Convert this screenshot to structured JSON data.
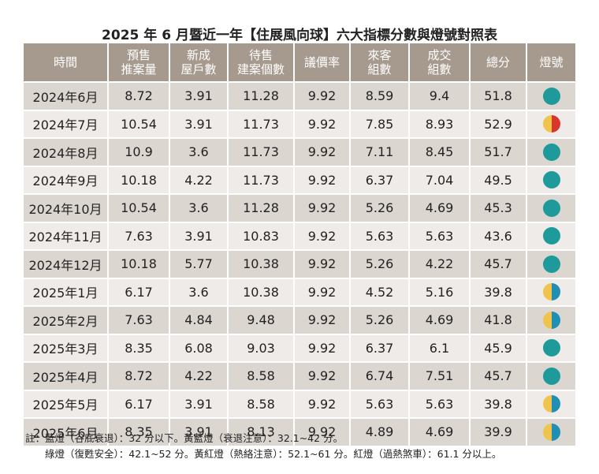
{
  "title": "2025 年 6 月暨近一年【住展風向球】六大指標分數與燈號對照表",
  "table": {
    "header": [
      [
        "時間"
      ],
      [
        "預售",
        "推案量"
      ],
      [
        "新成",
        "屋戶數"
      ],
      [
        "待售",
        "建案個數"
      ],
      [
        "議價率"
      ],
      [
        "來客",
        "組數"
      ],
      [
        "成交",
        "組數"
      ],
      [
        "總分"
      ],
      [
        "燈號"
      ]
    ],
    "rows": [
      [
        "2024年6月",
        8.72,
        3.91,
        11.28,
        9.92,
        8.59,
        9.4,
        51.8
      ],
      [
        "2024年7月",
        10.54,
        3.91,
        11.73,
        9.92,
        7.85,
        8.93,
        52.9
      ],
      [
        "2024年8月",
        10.9,
        3.6,
        11.73,
        9.92,
        7.11,
        8.45,
        51.7
      ],
      [
        "2024年9月",
        10.18,
        4.22,
        11.73,
        9.92,
        6.37,
        7.04,
        49.5
      ],
      [
        "2024年10月",
        10.54,
        3.6,
        11.28,
        9.92,
        5.26,
        4.69,
        45.3
      ],
      [
        "2024年11月",
        7.63,
        3.91,
        10.83,
        9.92,
        5.63,
        5.63,
        43.6
      ],
      [
        "2024年12月",
        10.18,
        5.77,
        10.38,
        9.92,
        5.26,
        4.22,
        45.7
      ],
      [
        "2025年1月",
        6.17,
        3.6,
        10.38,
        9.92,
        4.52,
        5.16,
        39.8
      ],
      [
        "2025年2月",
        7.63,
        4.84,
        9.48,
        9.92,
        5.26,
        4.69,
        41.8
      ],
      [
        "2025年3月",
        8.35,
        6.08,
        9.03,
        9.92,
        6.37,
        6.1,
        45.9
      ],
      [
        "2025年4月",
        8.72,
        4.22,
        8.58,
        9.92,
        6.74,
        7.51,
        45.7
      ],
      [
        "2025年5月",
        6.17,
        3.91,
        8.58,
        9.92,
        5.63,
        5.63,
        39.8
      ],
      [
        "2025年6月",
        8.35,
        3.91,
        8.13,
        9.92,
        4.89,
        4.69,
        39.9
      ]
    ]
  },
  "notes": [
    "註：藍燈（谷底衰退）：32 分以下。黃藍燈（衰退注意）：32.1~42 分。",
    "綠燈（復甦安全）：42.1~52 分。黃紅燈（熱絡注意）：52.1~61 分。紅燈（過熱煞車）：61.1 分以上。"
  ]
}
